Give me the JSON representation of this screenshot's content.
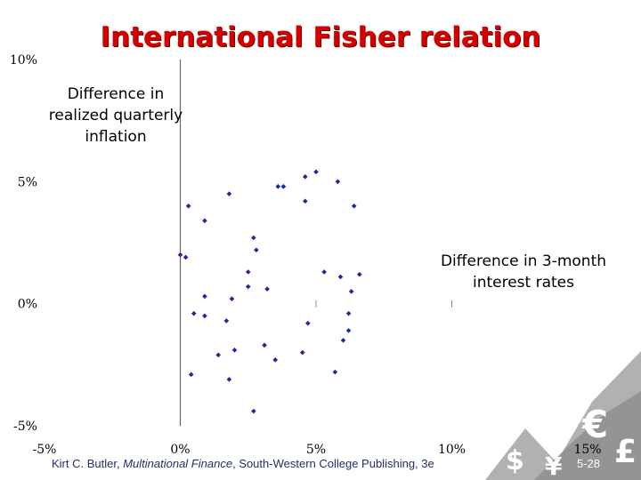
{
  "chart_data": {
    "type": "scatter",
    "title": "International Fisher relation",
    "xlabel": "Difference in 3-month interest rates",
    "ylabel": "Difference in realized quarterly inflation",
    "xlim": [
      -5,
      15
    ],
    "ylim": [
      -5,
      10
    ],
    "x_ticks": [
      "-5%",
      "0%",
      "5%",
      "10%",
      "15%"
    ],
    "y_ticks": [
      "-5%",
      "0%",
      "5%",
      "10%"
    ],
    "grid": false,
    "points": [
      {
        "x": 0.3,
        "y": 4.0
      },
      {
        "x": 1.8,
        "y": 4.5
      },
      {
        "x": 0.9,
        "y": 3.4
      },
      {
        "x": 0.0,
        "y": 2.0
      },
      {
        "x": 0.2,
        "y": 1.9
      },
      {
        "x": 2.7,
        "y": 2.7
      },
      {
        "x": 2.8,
        "y": 2.2
      },
      {
        "x": 3.6,
        "y": 4.8
      },
      {
        "x": 3.8,
        "y": 4.8
      },
      {
        "x": 4.6,
        "y": 5.2
      },
      {
        "x": 4.6,
        "y": 4.2
      },
      {
        "x": 5.0,
        "y": 5.4
      },
      {
        "x": 5.8,
        "y": 5.0
      },
      {
        "x": 6.4,
        "y": 4.0
      },
      {
        "x": 2.5,
        "y": 1.3
      },
      {
        "x": 2.5,
        "y": 0.7
      },
      {
        "x": 3.2,
        "y": 0.6
      },
      {
        "x": 0.9,
        "y": 0.3
      },
      {
        "x": 1.9,
        "y": 0.2
      },
      {
        "x": 5.3,
        "y": 1.3
      },
      {
        "x": 5.9,
        "y": 1.1
      },
      {
        "x": 6.6,
        "y": 1.2
      },
      {
        "x": 6.3,
        "y": 0.5
      },
      {
        "x": 0.5,
        "y": -0.4
      },
      {
        "x": 0.9,
        "y": -0.5
      },
      {
        "x": 1.7,
        "y": -0.7
      },
      {
        "x": 4.7,
        "y": -0.8
      },
      {
        "x": 6.2,
        "y": -0.4
      },
      {
        "x": 6.2,
        "y": -1.1
      },
      {
        "x": 6.0,
        "y": -1.5
      },
      {
        "x": 1.4,
        "y": -2.1
      },
      {
        "x": 2.0,
        "y": -1.9
      },
      {
        "x": 3.1,
        "y": -1.7
      },
      {
        "x": 3.5,
        "y": -2.3
      },
      {
        "x": 4.5,
        "y": -2.0
      },
      {
        "x": 5.7,
        "y": -2.8
      },
      {
        "x": 0.4,
        "y": -2.9
      },
      {
        "x": 1.8,
        "y": -3.1
      },
      {
        "x": 2.7,
        "y": -4.4
      }
    ]
  },
  "footer": {
    "author": "Kirt C. Butler, ",
    "book": "Multinational Finance",
    "publisher": ", South-Western College Publishing, 3e",
    "slide_number": "5-28"
  },
  "decoration": {
    "currency_symbols": [
      "$",
      "¥",
      "€",
      "£"
    ],
    "mountain_color": "#a8a8a8"
  }
}
